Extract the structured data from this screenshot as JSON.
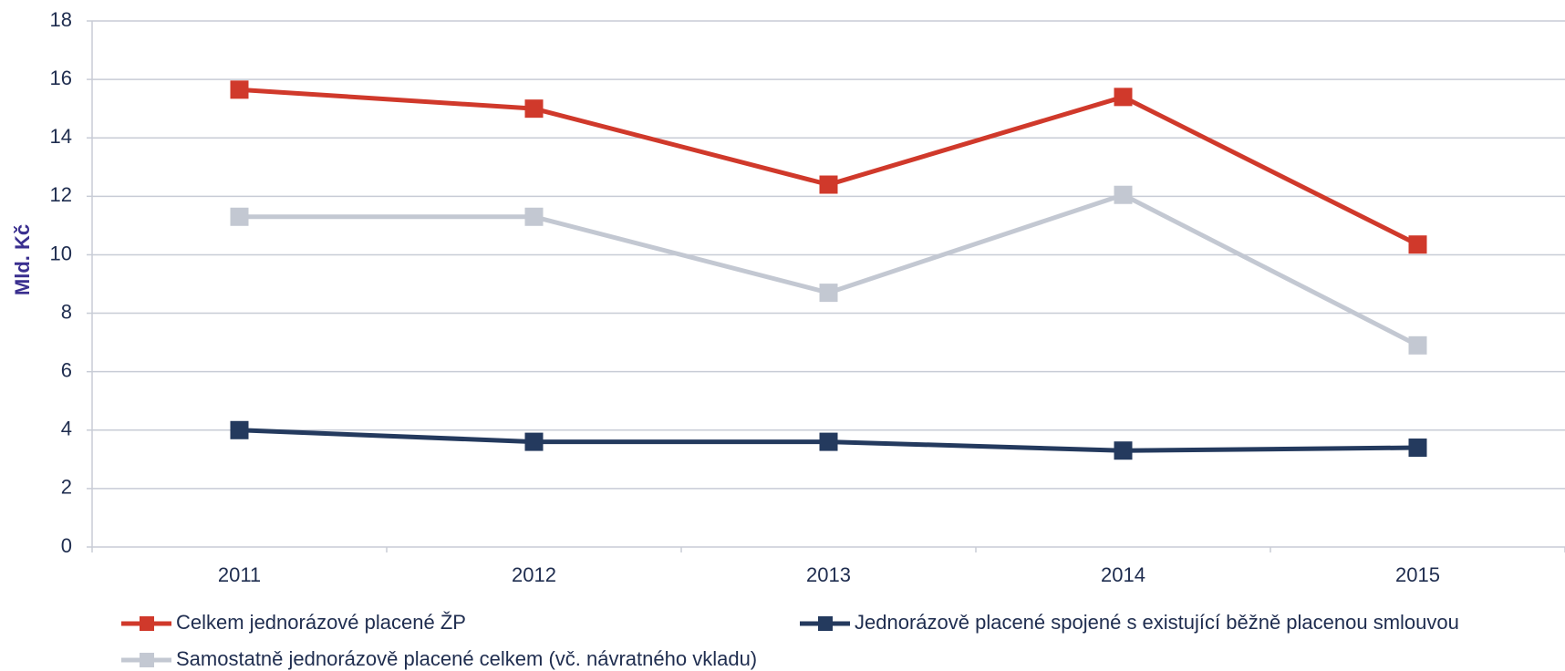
{
  "chart_data": {
    "type": "line",
    "y_label": "Mld. Kč",
    "categories": [
      "2011",
      "2012",
      "2013",
      "2014",
      "2015"
    ],
    "series": [
      {
        "name": "Celkem jednorázové placené ŽP",
        "color": "#d0392b",
        "values": [
          15.65,
          15.0,
          12.4,
          15.4,
          10.35
        ]
      },
      {
        "name": "Jednorázově placené spojené s existující běžně placenou smlouvou",
        "color": "#243a5e",
        "values": [
          4.0,
          3.6,
          3.6,
          3.3,
          3.4
        ]
      },
      {
        "name": "Samostatně jednorázově placené celkem (vč. návratného vkladu)",
        "color": "#c3c8d2",
        "values": [
          11.3,
          11.3,
          8.7,
          12.05,
          6.9
        ]
      }
    ],
    "ylim": [
      0,
      18
    ],
    "yticks": [
      0,
      2,
      4,
      6,
      8,
      10,
      12,
      14,
      16,
      18
    ],
    "grid": true
  }
}
